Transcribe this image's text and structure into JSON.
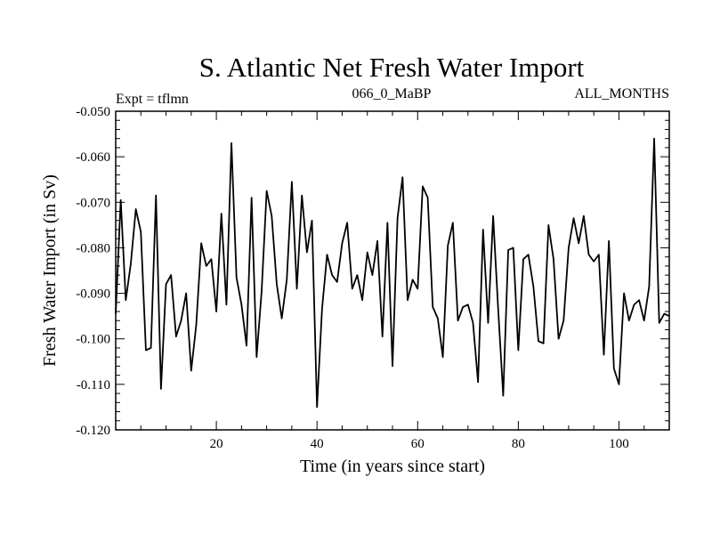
{
  "chart_data": {
    "type": "line",
    "title": "S. Atlantic Net Fresh Water Import",
    "subtitle_left": "Expt = tflmn",
    "subtitle_center": "066_0_MaBP",
    "subtitle_right": "ALL_MONTHS",
    "xlabel": "Time (in years since start)",
    "ylabel": "Fresh Water Import (in Sv)",
    "xlim": [
      0,
      110
    ],
    "ylim": [
      -0.12,
      -0.05
    ],
    "xticks": [
      20,
      40,
      60,
      80,
      100
    ],
    "yticks": [
      -0.12,
      -0.11,
      -0.1,
      -0.09,
      -0.08,
      -0.07,
      -0.06,
      -0.05
    ],
    "ytick_labels": [
      "-0.120",
      "-0.110",
      "-0.100",
      "-0.090",
      "-0.080",
      "-0.070",
      "-0.060",
      "-0.050"
    ],
    "grid": false,
    "series": [
      {
        "name": "Net Fresh Water Import",
        "x": [
          0,
          1,
          2,
          3,
          4,
          5,
          6,
          7,
          8,
          9,
          10,
          11,
          12,
          13,
          14,
          15,
          16,
          17,
          18,
          19,
          20,
          21,
          22,
          23,
          24,
          25,
          26,
          27,
          28,
          29,
          30,
          31,
          32,
          33,
          34,
          35,
          36,
          37,
          38,
          39,
          40,
          41,
          42,
          43,
          44,
          45,
          46,
          47,
          48,
          49,
          50,
          51,
          52,
          53,
          54,
          55,
          56,
          57,
          58,
          59,
          60,
          61,
          62,
          63,
          64,
          65,
          66,
          67,
          68,
          69,
          70,
          71,
          72,
          73,
          74,
          75,
          76,
          77,
          78,
          79,
          80,
          81,
          82,
          83,
          84,
          85,
          86,
          87,
          88,
          89,
          90,
          91,
          92,
          93,
          94,
          95,
          96,
          97,
          98,
          99,
          100,
          101,
          102,
          103,
          104,
          105,
          106,
          107,
          108,
          109,
          110
        ],
        "values": [
          -0.0945,
          -0.0695,
          -0.0915,
          -0.0835,
          -0.0715,
          -0.0765,
          -0.1025,
          -0.102,
          -0.0685,
          -0.111,
          -0.088,
          -0.086,
          -0.0995,
          -0.096,
          -0.09,
          -0.107,
          -0.097,
          -0.079,
          -0.084,
          -0.0825,
          -0.094,
          -0.0725,
          -0.0925,
          -0.057,
          -0.0865,
          -0.0925,
          -0.1015,
          -0.069,
          -0.104,
          -0.0895,
          -0.0675,
          -0.073,
          -0.088,
          -0.0955,
          -0.087,
          -0.0655,
          -0.089,
          -0.0685,
          -0.081,
          -0.074,
          -0.115,
          -0.0935,
          -0.0815,
          -0.086,
          -0.0875,
          -0.079,
          -0.0745,
          -0.089,
          -0.086,
          -0.0915,
          -0.081,
          -0.086,
          -0.0785,
          -0.0995,
          -0.0745,
          -0.106,
          -0.0735,
          -0.0645,
          -0.0915,
          -0.087,
          -0.089,
          -0.0665,
          -0.069,
          -0.093,
          -0.0955,
          -0.104,
          -0.0795,
          -0.0745,
          -0.096,
          -0.093,
          -0.0925,
          -0.0965,
          -0.1095,
          -0.076,
          -0.0965,
          -0.073,
          -0.0935,
          -0.1125,
          -0.0805,
          -0.08,
          -0.1025,
          -0.0825,
          -0.0815,
          -0.0885,
          -0.1005,
          -0.101,
          -0.075,
          -0.0825,
          -0.1,
          -0.096,
          -0.08,
          -0.0735,
          -0.079,
          -0.073,
          -0.0815,
          -0.083,
          -0.0815,
          -0.1035,
          -0.0785,
          -0.1065,
          -0.11,
          -0.09,
          -0.096,
          -0.0925,
          -0.0915,
          -0.096,
          -0.0885,
          -0.056,
          -0.0965,
          -0.0945,
          -0.095
        ]
      }
    ]
  }
}
